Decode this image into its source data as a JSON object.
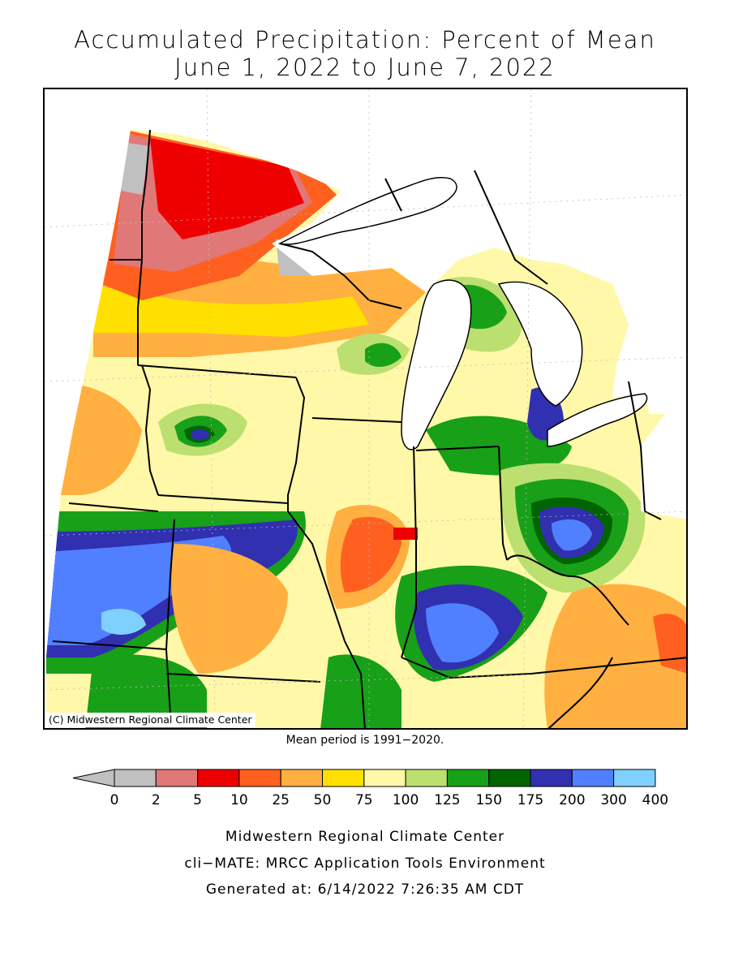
{
  "title_line1": "Accumulated Precipitation: Percent of Mean",
  "title_line2": "June 1, 2022 to June 7, 2022",
  "copyright": "(C) Midwestern Regional Climate Center",
  "mean_period": "Mean period is 1991−2020.",
  "legend": {
    "labels": [
      "0",
      "2",
      "5",
      "10",
      "25",
      "50",
      "75",
      "100",
      "125",
      "150",
      "175",
      "200",
      "300",
      "400"
    ],
    "colors": [
      "#c0c0c0",
      "#e07878",
      "#ee0000",
      "#ff6020",
      "#ffb040",
      "#ffe000",
      "#fff8a8",
      "#bce070",
      "#18a018",
      "#006400",
      "#3030b0",
      "#5080ff",
      "#80d0ff"
    ],
    "under_color": "#c0c0c0"
  },
  "footer": {
    "line1": "Midwestern Regional Climate Center",
    "line2": "cli−MATE: MRCC Application Tools Environment",
    "line3": "Generated at: 6/14/2022 7:26:35 AM CDT"
  }
}
